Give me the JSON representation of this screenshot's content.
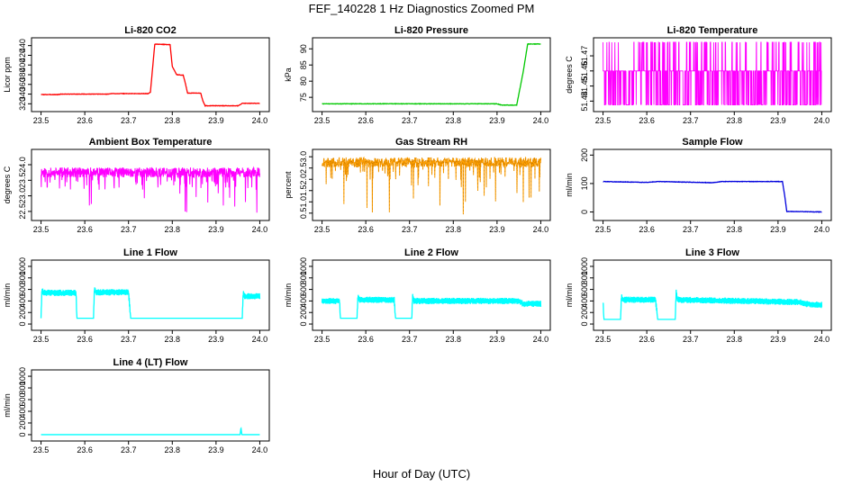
{
  "figure": {
    "title": "FEF_140228  1 Hz Diagnostics Zoomed PM",
    "xlabel": "Hour of Day (UTC)"
  },
  "chart_data": [
    {
      "type": "line",
      "title": "Li-820 CO2",
      "ylabel": "Licor ppm",
      "color": "#ff0000",
      "xlim": [
        23.5,
        24.0
      ],
      "ylim": [
        310,
        450
      ],
      "xticks": [
        "23.5",
        "23.6",
        "23.7",
        "23.8",
        "23.9",
        "24.0"
      ],
      "yticks": [
        "320",
        "340",
        "360",
        "380",
        "400",
        "420",
        "440"
      ],
      "series": [
        {
          "x": [
            23.5,
            23.54,
            23.545,
            23.655,
            23.66,
            23.745,
            23.75,
            23.76,
            23.795,
            23.8,
            23.81,
            23.825,
            23.83,
            23.835,
            23.865,
            23.87,
            23.875,
            23.95,
            23.955,
            23.96,
            24.0
          ],
          "y": [
            339,
            339,
            340,
            340,
            341,
            341,
            344,
            443,
            442,
            397,
            380,
            379,
            362,
            342,
            342,
            326,
            316,
            316,
            318,
            321,
            321
          ]
        }
      ]
    },
    {
      "type": "line",
      "title": "Li-820 Pressure",
      "ylabel": "kPa",
      "color": "#00c800",
      "xlim": [
        23.5,
        24.0
      ],
      "ylim": [
        71.5,
        92.5
      ],
      "xticks": [
        "23.5",
        "23.6",
        "23.7",
        "23.8",
        "23.9",
        "24.0"
      ],
      "yticks": [
        "75",
        "80",
        "85",
        "90"
      ],
      "series": [
        {
          "x": [
            23.5,
            23.9,
            23.91,
            23.945,
            23.96,
            23.97,
            24.0
          ],
          "y": [
            73.0,
            73.0,
            72.6,
            72.6,
            83.0,
            91.5,
            91.5
          ]
        }
      ]
    },
    {
      "type": "line",
      "title": "Li-820 Temperature",
      "ylabel": "degrees C",
      "color": "#ff00ff",
      "xlim": [
        23.5,
        24.0
      ],
      "ylim": [
        51.435,
        51.48
      ],
      "xticks": [
        "23.5",
        "23.6",
        "23.7",
        "23.8",
        "23.9",
        "24.0"
      ],
      "yticks": [
        "51.44",
        "51.45",
        "51.46",
        "51.47"
      ],
      "levels": [
        51.4375,
        51.46,
        51.479
      ],
      "seed": 3
    },
    {
      "type": "line",
      "title": "Ambient Box Temperature",
      "ylabel": "degrees C",
      "color": "#ff00ff",
      "xlim": [
        23.5,
        24.0
      ],
      "ylim": [
        22.3,
        24.4
      ],
      "xticks": [
        "23.5",
        "23.6",
        "23.7",
        "23.8",
        "23.9",
        "24.0"
      ],
      "yticks": [
        "22.5",
        "23.0",
        "23.5",
        "24.0"
      ],
      "baseline": 23.75,
      "noise": 0.16,
      "spike_min": 22.45,
      "seed": 11
    },
    {
      "type": "line",
      "title": "Gas Stream RH",
      "ylabel": "percent",
      "color": "#ffa000",
      "xlim": [
        23.5,
        24.0
      ],
      "ylim": [
        0.3,
        3.2
      ],
      "xticks": [
        "23.5",
        "23.6",
        "23.7",
        "23.8",
        "23.9",
        "24.0"
      ],
      "yticks": [
        "0.5",
        "1.0",
        "1.5",
        "2.0",
        "2.5",
        "3.0"
      ],
      "baseline": 2.75,
      "noise": 0.22,
      "spike_min": 0.35,
      "seed": 21
    },
    {
      "type": "line",
      "title": "Sample Flow",
      "ylabel": "ml/min",
      "color": "#0000dd",
      "xlim": [
        23.5,
        24.0
      ],
      "ylim": [
        -20,
        210
      ],
      "xticks": [
        "23.5",
        "23.6",
        "23.7",
        "23.8",
        "23.9",
        "24.0"
      ],
      "yticks": [
        "0",
        "100",
        "200"
      ],
      "series": [
        {
          "x": [
            23.5,
            23.6,
            23.625,
            23.75,
            23.77,
            23.91,
            23.915,
            23.92,
            24.0
          ],
          "y": [
            107,
            104,
            107,
            103,
            107,
            107,
            60,
            2,
            0
          ]
        }
      ]
    },
    {
      "type": "line",
      "title": "Line 1 Flow",
      "ylabel": "ml/min",
      "color": "#00ffff",
      "xlim": [
        23.5,
        24.0
      ],
      "ylim": [
        -60,
        1060
      ],
      "xticks": [
        "23.5",
        "23.6",
        "23.7",
        "23.8",
        "23.9",
        "24.0"
      ],
      "yticks": [
        "0",
        "200",
        "400",
        "600",
        "800",
        "1000"
      ],
      "series": [
        {
          "x": [
            23.5,
            23.502,
            23.505,
            23.58,
            23.582,
            23.62,
            23.622,
            23.625,
            23.7,
            23.705,
            23.96,
            23.962,
            23.965,
            24.0
          ],
          "y": [
            100,
            600,
            540,
            540,
            100,
            100,
            620,
            550,
            550,
            100,
            100,
            540,
            480,
            480
          ]
        }
      ]
    },
    {
      "type": "line",
      "title": "Line 2 Flow",
      "ylabel": "ml/min",
      "color": "#00ffff",
      "xlim": [
        23.5,
        24.0
      ],
      "ylim": [
        -60,
        1060
      ],
      "xticks": [
        "23.5",
        "23.6",
        "23.7",
        "23.8",
        "23.9",
        "24.0"
      ],
      "yticks": [
        "0",
        "200",
        "400",
        "600",
        "800",
        "1000"
      ],
      "series": [
        {
          "x": [
            23.5,
            23.54,
            23.542,
            23.58,
            23.582,
            23.585,
            23.665,
            23.668,
            23.705,
            23.707,
            23.71,
            23.95,
            23.96,
            24.0
          ],
          "y": [
            400,
            400,
            100,
            100,
            480,
            420,
            420,
            100,
            100,
            490,
            400,
            400,
            350,
            350
          ]
        }
      ]
    },
    {
      "type": "line",
      "title": "Line 3 Flow",
      "ylabel": "ml/min",
      "color": "#00ffff",
      "xlim": [
        23.5,
        24.0
      ],
      "ylim": [
        -60,
        1060
      ],
      "xticks": [
        "23.5",
        "23.6",
        "23.7",
        "23.8",
        "23.9",
        "24.0"
      ],
      "yticks": [
        "0",
        "200",
        "400",
        "600",
        "800",
        "1000"
      ],
      "series": [
        {
          "x": [
            23.5,
            23.502,
            23.505,
            23.54,
            23.542,
            23.545,
            23.62,
            23.625,
            23.665,
            23.667,
            23.67,
            23.95,
            23.96,
            24.0
          ],
          "y": [
            400,
            80,
            80,
            80,
            480,
            420,
            420,
            80,
            80,
            560,
            420,
            380,
            350,
            330
          ]
        }
      ]
    },
    {
      "type": "line",
      "title": "Line 4 (LT) Flow",
      "ylabel": "ml/min",
      "color": "#00ffff",
      "xlim": [
        23.5,
        24.0
      ],
      "ylim": [
        -60,
        1060
      ],
      "xticks": [
        "23.5",
        "23.6",
        "23.7",
        "23.8",
        "23.9",
        "24.0"
      ],
      "yticks": [
        "0",
        "200",
        "400",
        "600",
        "800",
        "1000"
      ],
      "series": [
        {
          "x": [
            23.5,
            23.955,
            23.957,
            23.959,
            23.961,
            24.0
          ],
          "y": [
            0,
            0,
            120,
            0,
            0,
            0
          ]
        }
      ]
    }
  ]
}
